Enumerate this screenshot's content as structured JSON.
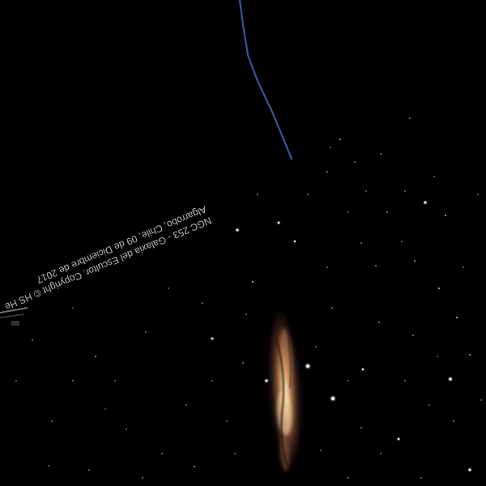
{
  "caption": {
    "line1": "NGC 253 - Galaxia del Escultor. Copyright © HS He",
    "line2": "Algarrobo, Chile, 09 de Diciembre de 2017"
  }
}
